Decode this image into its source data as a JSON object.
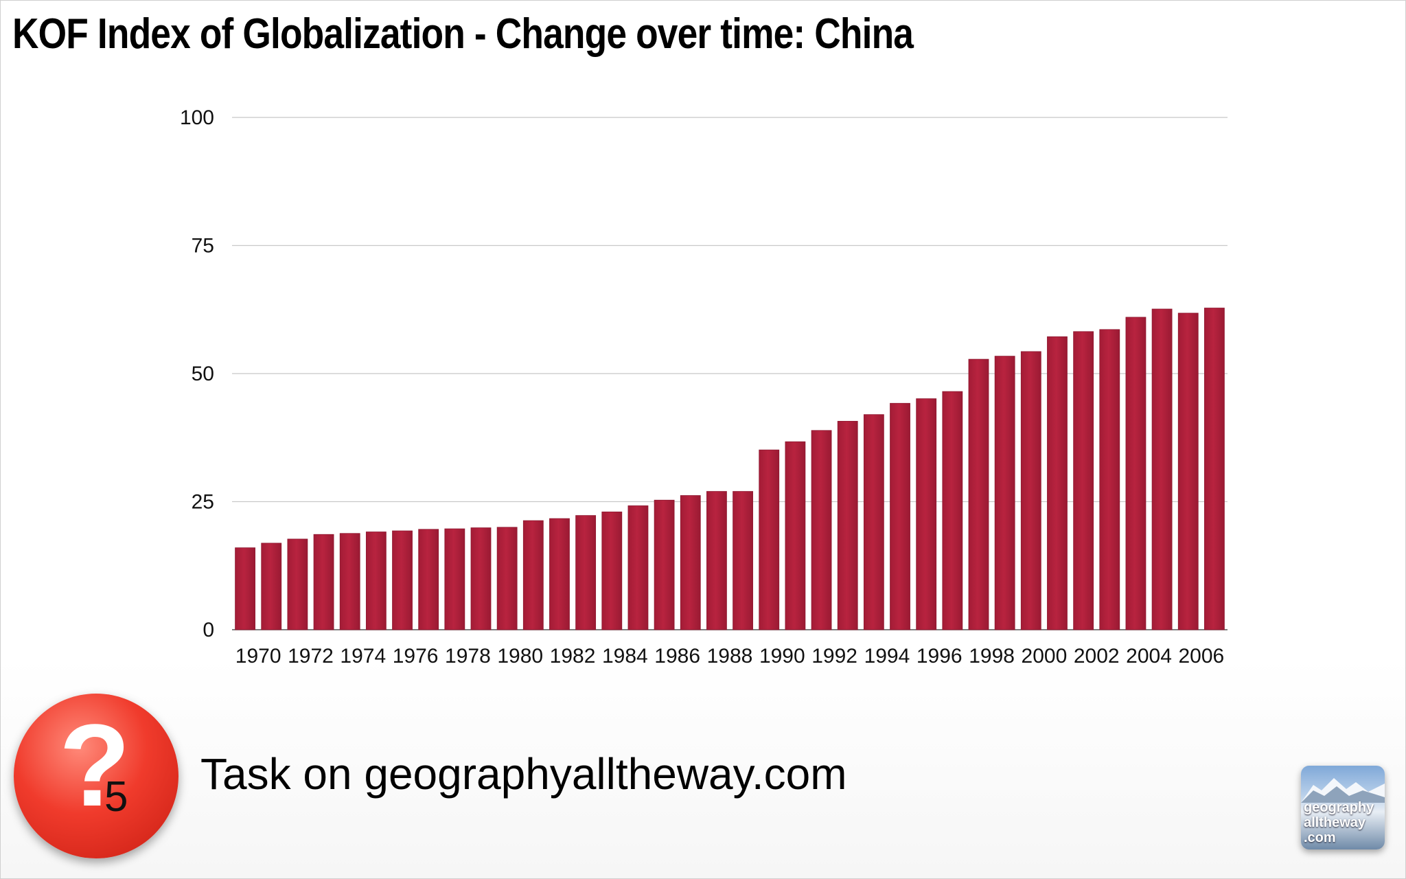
{
  "title": "KOF Index of Globalization - Change over time: China",
  "chart_data": {
    "type": "bar",
    "title": "KOF Index of Globalization - Change over time: China",
    "xlabel": "",
    "ylabel": "",
    "ylim": [
      0,
      100
    ],
    "yticks": [
      0,
      25,
      50,
      75,
      100
    ],
    "grid": true,
    "categories": [
      "1970",
      "1971",
      "1972",
      "1973",
      "1974",
      "1975",
      "1976",
      "1977",
      "1978",
      "1979",
      "1980",
      "1981",
      "1982",
      "1983",
      "1984",
      "1985",
      "1986",
      "1987",
      "1988",
      "1989",
      "1990",
      "1991",
      "1992",
      "1993",
      "1994",
      "1995",
      "1996",
      "1997",
      "1998",
      "1999",
      "2000",
      "2001",
      "2002",
      "2003",
      "2004",
      "2005",
      "2006",
      "2007"
    ],
    "xtick_labels": [
      "1970",
      "1972",
      "1974",
      "1976",
      "1978",
      "1980",
      "1982",
      "1984",
      "1986",
      "1988",
      "1990",
      "1992",
      "1994",
      "1996",
      "1998",
      "2000",
      "2002",
      "2004",
      "2006"
    ],
    "values": [
      16.0,
      16.9,
      17.7,
      18.6,
      18.8,
      19.1,
      19.3,
      19.6,
      19.7,
      19.9,
      20.0,
      21.3,
      21.7,
      22.3,
      23.0,
      24.2,
      25.3,
      26.2,
      27.0,
      27.0,
      35.1,
      36.7,
      38.9,
      40.7,
      42.0,
      44.2,
      45.1,
      46.5,
      52.8,
      53.4,
      54.3,
      57.2,
      58.2,
      58.6,
      61.0,
      62.6,
      61.8,
      62.8
    ],
    "bar_color": "#b8233f"
  },
  "footer": {
    "badge_symbol": "?",
    "badge_number": "5",
    "task_text": "Task on geographyalltheway.com",
    "logo_lines": [
      "geography",
      "alltheway",
      ".com"
    ]
  },
  "colors": {
    "bar": "#b8233f",
    "gridline": "#c8c8c8",
    "badge": "#e8352a"
  }
}
